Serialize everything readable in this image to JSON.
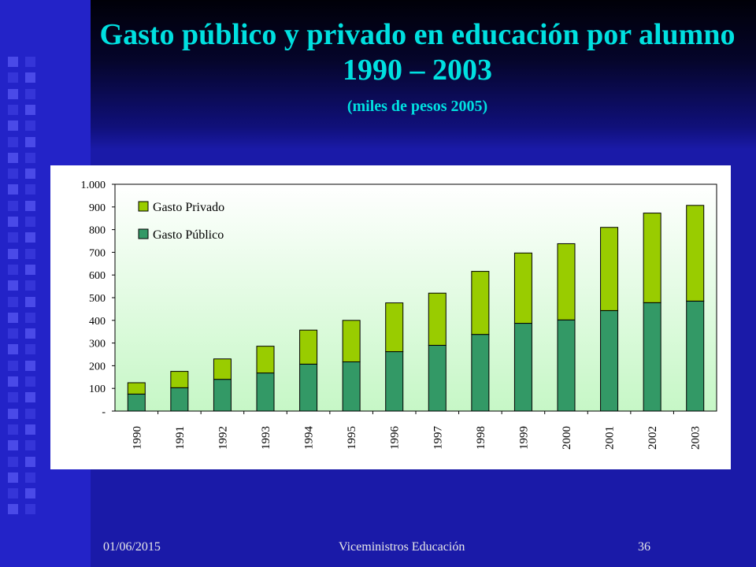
{
  "slide": {
    "title": "Gasto público y privado en educación por alumno 1990 – 2003",
    "subtitle": "(miles de pesos 2005)"
  },
  "footer": {
    "date": "01/06/2015",
    "center": "Viceministros Educación",
    "page": "36"
  },
  "colors": {
    "title": "#00e0e0",
    "privado": "#99cc00",
    "publico": "#339966",
    "plot_top": "#ffffff",
    "plot_bottom": "#c6f7c6"
  },
  "chart_data": {
    "type": "bar",
    "stacked": true,
    "categories": [
      "1990",
      "1991",
      "1992",
      "1993",
      "1994",
      "1995",
      "1996",
      "1997",
      "1998",
      "1999",
      "2000",
      "2001",
      "2002",
      "2003"
    ],
    "series": [
      {
        "name": "Gasto Público",
        "values": [
          75,
          103,
          140,
          168,
          207,
          217,
          262,
          290,
          338,
          387,
          402,
          443,
          478,
          485
        ]
      },
      {
        "name": "Gasto Privado",
        "values": [
          50,
          72,
          90,
          118,
          150,
          183,
          215,
          230,
          278,
          310,
          336,
          367,
          395,
          422
        ]
      }
    ],
    "legend_order": [
      "Gasto Privado",
      "Gasto Público"
    ],
    "legend_position": "top-left",
    "yticks": [
      "-",
      "100",
      "200",
      "300",
      "400",
      "500",
      "600",
      "700",
      "800",
      "900",
      "1.000"
    ],
    "ylim": [
      0,
      1000
    ],
    "grid": false
  }
}
